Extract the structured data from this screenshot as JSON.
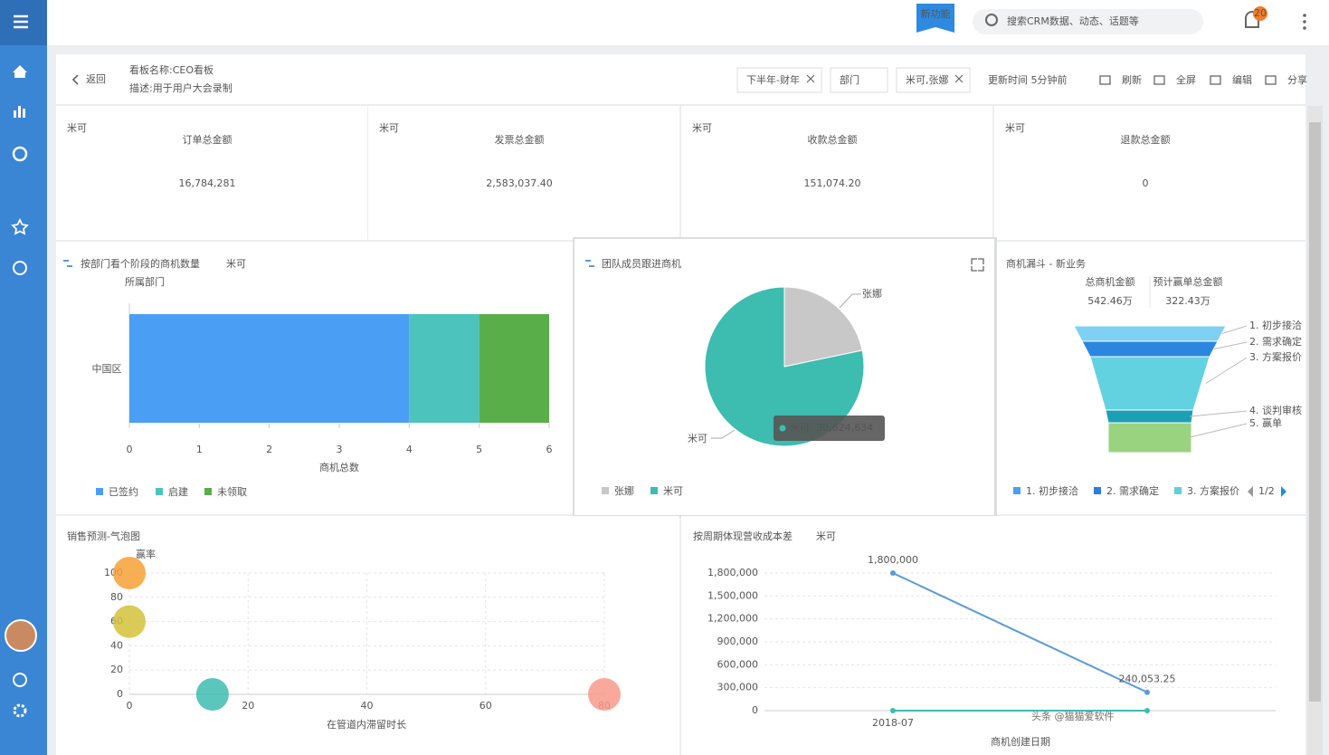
{
  "header": {
    "badge": "新功能",
    "search_placeholder": "搜索CRM数据、动态、话题等",
    "notifications": "20"
  },
  "board": {
    "back": "返回",
    "title": "看板名称:CEO看板",
    "description": "描述:用于用户大会录制",
    "filters": [
      "下半年-财年",
      "部门",
      "米可,张娜"
    ],
    "update_time": "更新时间 5分钟前",
    "actions": [
      "刷新",
      "全屏",
      "编辑",
      "分享"
    ]
  },
  "kpis": [
    {
      "tag": "米可",
      "label": "订单总金额",
      "value": "16,784,281"
    },
    {
      "tag": "米可",
      "label": "发票总金额",
      "value": "2,583,037.40"
    },
    {
      "tag": "米可",
      "label": "收款总金额",
      "value": "151,074.20"
    },
    {
      "tag": "米可",
      "label": "退款总金额",
      "value": "0"
    }
  ],
  "chart_data": [
    {
      "type": "bar",
      "title": "按部门看个阶段的商机数量",
      "tag": "米可",
      "y_label": "所属部门",
      "x_label": "商机总数",
      "categories": [
        "中国区"
      ],
      "series": [
        {
          "name": "已签约",
          "color": "#4a9ff5",
          "values": [
            4
          ]
        },
        {
          "name": "启建",
          "color": "#4dc3be",
          "values": [
            1
          ]
        },
        {
          "name": "未领取",
          "color": "#5aae4a",
          "values": [
            1
          ]
        }
      ],
      "xlim": [
        0,
        6
      ],
      "xticks": [
        0,
        1,
        2,
        3,
        4,
        5,
        6
      ]
    },
    {
      "type": "pie",
      "title": "团队成员跟进商机",
      "categories": [
        "张娜",
        "米可"
      ],
      "values": [
        8500000,
        30624634
      ],
      "colors": [
        "#c8c8c8",
        "#3dbcb0"
      ],
      "tooltip": "米可: 30,624,634"
    },
    {
      "type": "funnel",
      "title": "商机漏斗 - 新业务",
      "stats": [
        {
          "label": "总商机金额",
          "value": "542.46万"
        },
        {
          "label": "预计赢单总金额",
          "value": "322.43万"
        }
      ],
      "categories": [
        "1. 初步接洽",
        "2. 需求确定",
        "3. 方案报价",
        "4. 谈判审核",
        "5. 赢单"
      ],
      "colors": [
        "#7fd0f3",
        "#2b86e0",
        "#62d2e0",
        "#1a9fb5",
        "#9ad37f"
      ],
      "legend": [
        "1. 初步接洽",
        "2. 需求确定",
        "3. 方案报价"
      ],
      "legend_colors": [
        "#4a9ff5",
        "#2b7de0",
        "#62cfe0"
      ],
      "pager": "1/2"
    },
    {
      "type": "scatter",
      "title": "销售预测-气泡图",
      "y_label": "赢率",
      "x_label": "在管道内滞留时长",
      "series": [
        {
          "color": "#f7a035",
          "x": [
            0
          ],
          "values": [
            100
          ]
        },
        {
          "color": "#d4c13a",
          "x": [
            0
          ],
          "values": [
            60
          ]
        },
        {
          "color": "#3dbcb0",
          "x": [
            14
          ],
          "values": [
            0
          ]
        },
        {
          "color": "#f79a8a",
          "x": [
            80
          ],
          "values": [
            0
          ]
        }
      ],
      "xlim": [
        0,
        80
      ],
      "xticks": [
        0,
        20,
        40,
        60,
        80
      ],
      "ylim": [
        0,
        100
      ],
      "yticks": [
        0,
        20,
        40,
        60,
        80,
        100
      ],
      "grid": true
    },
    {
      "type": "line",
      "title": "按周期体现营收成本差",
      "tag": "米可",
      "x_label": "商机创建日期",
      "categories": [
        "2018-07",
        null
      ],
      "series": [
        {
          "color": "#5b9bd9",
          "values": [
            1800000,
            240053.25
          ],
          "value_labels": [
            "1,800,000",
            "240,053.25"
          ]
        },
        {
          "color": "#3dbcb0",
          "values": [
            0,
            0
          ]
        }
      ],
      "ylim": [
        0,
        1800000
      ],
      "yticks": [
        0,
        {
          "value": 300000,
          "label": "300,000"
        },
        {
          "value": 600000,
          "label": "600,000"
        },
        {
          "value": 900000,
          "label": "900,000"
        },
        {
          "value": 1200000,
          "label": "1,200,000"
        },
        {
          "value": 1500000,
          "label": "1,500,000"
        },
        {
          "value": 1800000,
          "label": "1,800,000"
        }
      ],
      "grid": true
    }
  ],
  "watermark": "头条 @猫猫爱软件"
}
